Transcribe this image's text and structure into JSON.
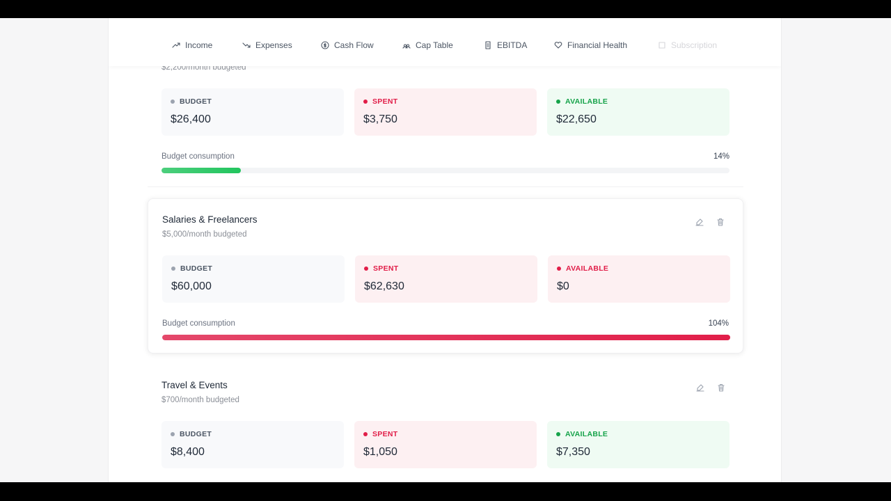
{
  "nav": {
    "tabs": [
      "Income",
      "Expenses",
      "Cash Flow",
      "Cap Table",
      "EBITDA",
      "Financial Health",
      "Subscription"
    ]
  },
  "cards": [
    {
      "subtitle": "$2,200/month budgeted",
      "stats": [
        {
          "label": "BUDGET",
          "value": "$26,400",
          "color": "#9ca3af"
        },
        {
          "label": "SPENT",
          "value": "$3,750",
          "color": "#e11d48"
        },
        {
          "label": "AVAILABLE",
          "value": "$22,650",
          "color": "#16a34a"
        }
      ],
      "consumption_label": "Budget consumption",
      "consumption": 14,
      "consumption_text": "14%",
      "bar_color": "#22c55e"
    },
    {
      "name": "Salaries & Freelancers",
      "subtitle": "$5,000/month budgeted",
      "stats": [
        {
          "label": "BUDGET",
          "value": "$60,000",
          "color": "#9ca3af"
        },
        {
          "label": "SPENT",
          "value": "$62,630",
          "color": "#e11d48"
        },
        {
          "label": "AVAILABLE",
          "value": "$0",
          "color": "#e11d48"
        }
      ],
      "consumption_label": "Budget consumption",
      "consumption": 104,
      "consumption_text": "104%",
      "bar_color": "#e11d48"
    },
    {
      "name": "Travel & Events",
      "subtitle": "$700/month budgeted",
      "stats": [
        {
          "label": "BUDGET",
          "value": "$8,400",
          "color": "#9ca3af"
        },
        {
          "label": "SPENT",
          "value": "$1,050",
          "color": "#e11d48"
        },
        {
          "label": "AVAILABLE",
          "value": "$7,350",
          "color": "#16a34a"
        }
      ]
    }
  ]
}
